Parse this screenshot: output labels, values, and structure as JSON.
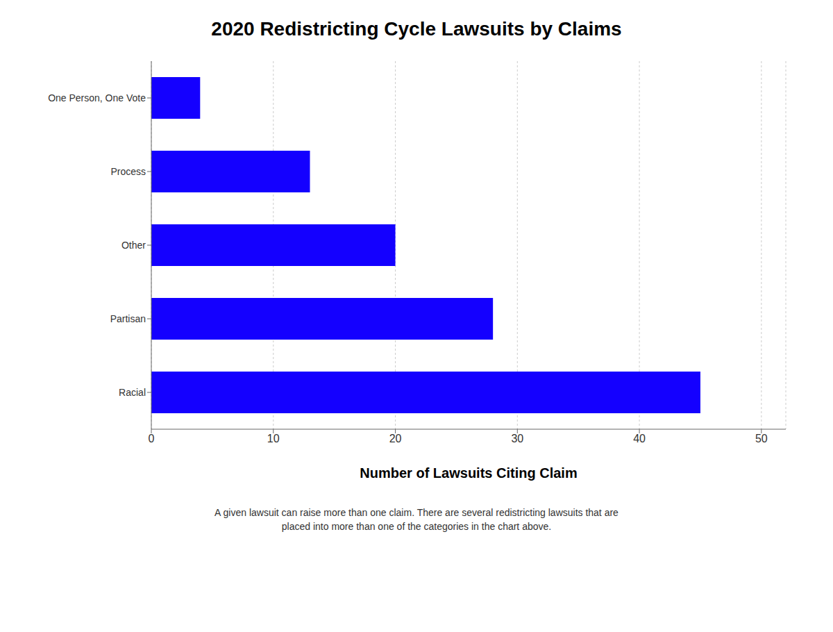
{
  "chart_data": {
    "type": "bar",
    "orientation": "horizontal",
    "title": "2020 Redistricting Cycle Lawsuits by Claims",
    "categories": [
      "Racial",
      "Partisan",
      "Other",
      "Process",
      "One Person, One Vote"
    ],
    "values": [
      45,
      28,
      20,
      13,
      4
    ],
    "color": "#1400ff",
    "xlabel": "Number of Lawsuits Citing Claim",
    "xlim": [
      0,
      52
    ],
    "xticks": [
      0,
      10,
      20,
      30,
      40,
      50
    ],
    "grid": true,
    "footnote": "A given lawsuit can raise more than one claim. There are several redistricting lawsuits that are\nplaced into more than one of the categories in the chart above."
  }
}
